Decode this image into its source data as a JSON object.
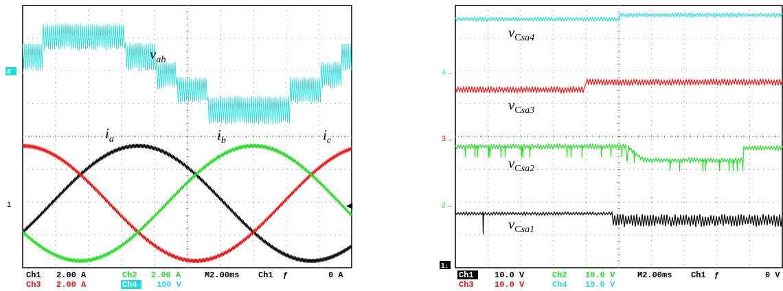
{
  "colors": {
    "ch1": "#000000",
    "ch2": "#22dd22",
    "ch3": "#ee1111",
    "ch4": "#22dddd",
    "grid": "#666666"
  },
  "left": {
    "vab": {
      "label": "v",
      "sub": "ab"
    },
    "ia": {
      "label": "i",
      "sub": "a"
    },
    "ib": {
      "label": "i",
      "sub": "b"
    },
    "ic": {
      "label": "i",
      "sub": "c"
    },
    "markers": {
      "ch4": "4",
      "ch1": "1"
    },
    "readout": {
      "row1": [
        "Ch1",
        "2.00 A",
        "Ch2",
        "2.00 A",
        "M2.00ms",
        "Ch1",
        "ƒ",
        "0 A"
      ],
      "row2": [
        "Ch3",
        "2.00 A",
        "Ch4",
        "100 V"
      ]
    }
  },
  "right": {
    "csa4": {
      "label": "v",
      "up": "C",
      "sub": "sa4"
    },
    "csa3": {
      "label": "v",
      "up": "C",
      "sub": "sa3"
    },
    "csa2": {
      "label": "v",
      "up": "C",
      "sub": "sa2"
    },
    "csa1": {
      "label": "v",
      "up": "C",
      "sub": "sa1"
    },
    "markers": {
      "ch4": "4",
      "ch3": "3",
      "ch2": "2",
      "ch1": "1"
    },
    "readout": {
      "row1": [
        "Ch1",
        "10.0 V",
        "Ch2",
        "10.0 V",
        "M2.00ms",
        "Ch1",
        "ƒ",
        "0 V"
      ],
      "row2": [
        "Ch3",
        "10.0 V",
        "Ch4",
        "10.0 V"
      ]
    }
  },
  "chart_data": [
    {
      "type": "line",
      "title": "",
      "xlabel": "",
      "ylabel": "",
      "timebase": "M2.00ms",
      "series": [
        {
          "name": "v_ab",
          "channel": "Ch4",
          "scale": "100 V/div",
          "shape": "multilevel PWM staircase, positive half then negative half"
        },
        {
          "name": "i_a",
          "channel": "Ch1",
          "scale": "2.00 A/div",
          "shape": "sinusoid"
        },
        {
          "name": "i_b",
          "channel": "Ch2",
          "scale": "2.00 A/div",
          "shape": "sinusoid"
        },
        {
          "name": "i_c",
          "channel": "Ch3",
          "scale": "2.00 A/div",
          "shape": "sinusoid"
        }
      ]
    },
    {
      "type": "line",
      "title": "",
      "xlabel": "",
      "ylabel": "",
      "timebase": "M2.00ms",
      "series": [
        {
          "name": "v_Csa4",
          "channel": "Ch4",
          "scale": "10.0 V/div"
        },
        {
          "name": "v_Csa3",
          "channel": "Ch3",
          "scale": "10.0 V/div"
        },
        {
          "name": "v_Csa2",
          "channel": "Ch2",
          "scale": "10.0 V/div"
        },
        {
          "name": "v_Csa1",
          "channel": "Ch1",
          "scale": "10.0 V/div"
        }
      ]
    }
  ]
}
